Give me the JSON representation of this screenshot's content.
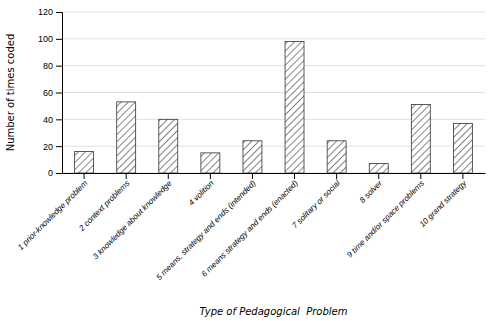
{
  "chart_data": {
    "type": "bar",
    "categories": [
      "1 prior-knowledge problem",
      "2 context problems",
      "3 knowledge about knowledge",
      "4 volition",
      "5 means, strategy and ends (intended)",
      "6 means strategy and ends (enacted)",
      "7 solitary or social",
      "8 solver",
      "9 time and/or space problems",
      "10 grand strategy"
    ],
    "values": [
      16,
      53,
      40,
      15,
      24,
      98,
      24,
      7,
      51,
      37
    ],
    "color": "#333333",
    "ylabel": "Number of times coded",
    "xlabel": "Type of Pedagogical  Problem",
    "ylim": [
      0,
      120
    ],
    "yticks": [
      0,
      20,
      40,
      60,
      80,
      100,
      120
    ],
    "grid": true
  }
}
